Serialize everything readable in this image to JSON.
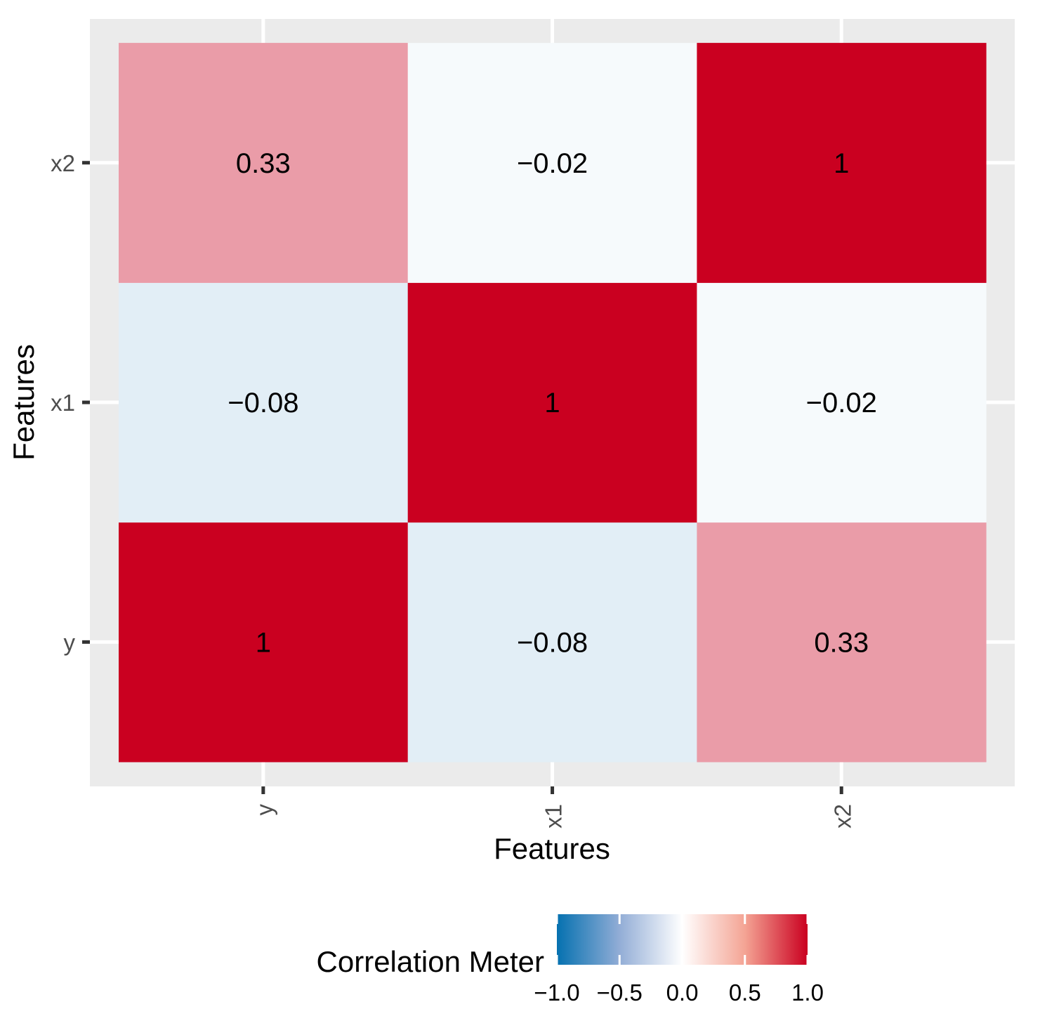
{
  "chart_data": {
    "type": "heatmap",
    "title": "",
    "xlabel": "Features",
    "ylabel": "Features",
    "x_categories": [
      "y",
      "x1",
      "x2"
    ],
    "y_categories": [
      "y",
      "x1",
      "x2"
    ],
    "values": [
      [
        1,
        -0.08,
        0.33
      ],
      [
        -0.08,
        1,
        -0.02
      ],
      [
        0.33,
        -0.02,
        1
      ]
    ],
    "labels": [
      [
        "1",
        "−0.08",
        "0.33"
      ],
      [
        "−0.08",
        "1",
        "−0.02"
      ],
      [
        "0.33",
        "−0.02",
        "1"
      ]
    ],
    "legend": {
      "title": "Correlation Meter",
      "position": "bottom",
      "range": [
        -1,
        1
      ],
      "ticks": [
        -1,
        -0.5,
        0,
        0.5,
        1
      ],
      "tick_labels": [
        "−1.0",
        "−0.5",
        "0.0",
        "0.5",
        "1.0"
      ],
      "colors": {
        "low": "#0571B0",
        "mid": "#FFFFFF",
        "high": "#CA0020"
      }
    },
    "grid": true
  }
}
